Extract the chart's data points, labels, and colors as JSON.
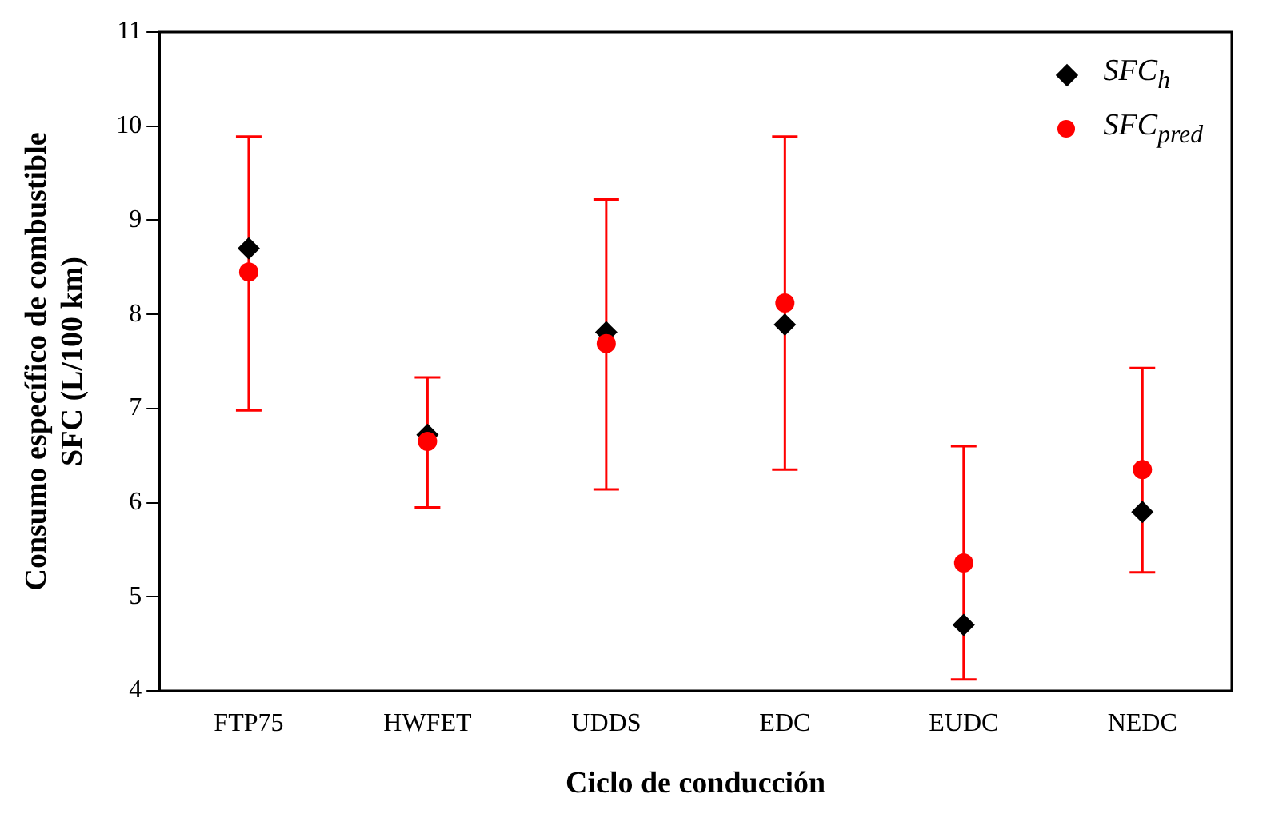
{
  "chart_data": {
    "type": "scatter",
    "xlabel": "Ciclo de conducción",
    "ylabel": "Consumo específico de combustible\nSFC (L/100 km)",
    "categories": [
      "FTP75",
      "HWFET",
      "UDDS",
      "EDC",
      "EUDC",
      "NEDC"
    ],
    "series": [
      {
        "name": "SFC$_{h}$",
        "color": "#000000",
        "marker": "diamond",
        "values": [
          8.7,
          6.72,
          7.81,
          7.89,
          4.7,
          5.9
        ]
      },
      {
        "name": "SFC$_{pred}$",
        "color": "#ff0000",
        "marker": "circle",
        "values": [
          8.45,
          6.65,
          7.69,
          8.12,
          5.36,
          6.35
        ],
        "errors": [
          [
            6.98,
            9.89
          ],
          [
            5.95,
            7.33
          ],
          [
            6.14,
            9.22
          ],
          [
            6.35,
            9.89
          ],
          [
            4.12,
            6.6
          ],
          [
            5.26,
            7.43
          ]
        ]
      }
    ],
    "ylim": [
      4,
      11
    ],
    "yticks": [
      4,
      5,
      6,
      7,
      8,
      9,
      10,
      11
    ],
    "grid": false,
    "legend": "top right"
  }
}
